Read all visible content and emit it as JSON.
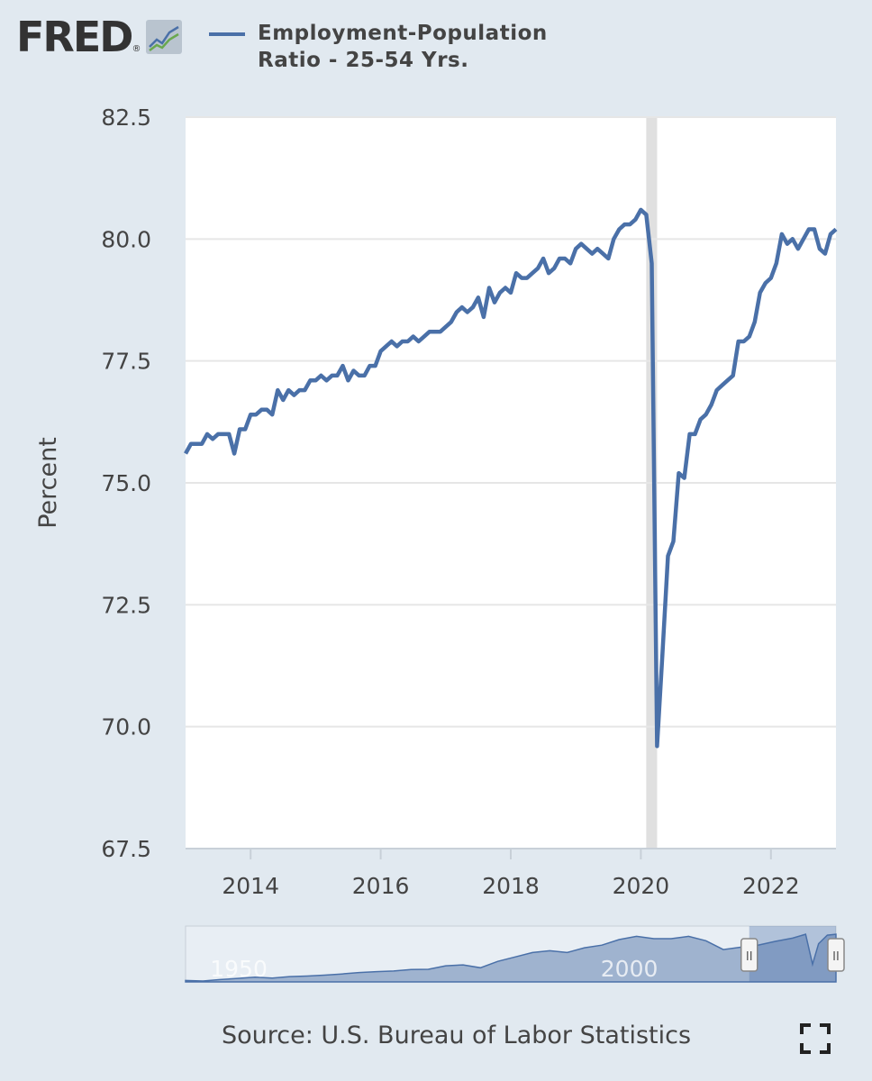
{
  "header": {
    "logo_text": "FRED",
    "logo_reg": "®",
    "legend_label": "Employment-Population Ratio - 25-54 Yrs.",
    "series_color": "#4a70a8"
  },
  "source": "Source: U.S. Bureau of Labor Statistics",
  "icons": {
    "fullscreen": "fullscreen-icon",
    "logo": "chart-trend-icon"
  },
  "navigator": {
    "labels": [
      "1950",
      "2000"
    ],
    "handle_glyph": "II"
  },
  "chart_data": {
    "type": "line",
    "ylabel": "Percent",
    "xlabel": "",
    "ylim": [
      67.5,
      82.5
    ],
    "xlim": [
      2013.0,
      2023.0
    ],
    "yticks": [
      "67.5",
      "70.0",
      "72.5",
      "75.0",
      "77.5",
      "80.0",
      "82.5"
    ],
    "xticks": [
      "2014",
      "2016",
      "2018",
      "2020",
      "2022"
    ],
    "grid": true,
    "legend": "top",
    "recession_shading": [
      2020.083,
      2020.25
    ],
    "series": [
      {
        "name": "Employment-Population Ratio - 25-54 Yrs.",
        "color": "#4a70a8",
        "x": [
          2013.0,
          2013.083,
          2013.167,
          2013.25,
          2013.333,
          2013.417,
          2013.5,
          2013.583,
          2013.667,
          2013.75,
          2013.833,
          2013.917,
          2014.0,
          2014.083,
          2014.167,
          2014.25,
          2014.333,
          2014.417,
          2014.5,
          2014.583,
          2014.667,
          2014.75,
          2014.833,
          2014.917,
          2015.0,
          2015.083,
          2015.167,
          2015.25,
          2015.333,
          2015.417,
          2015.5,
          2015.583,
          2015.667,
          2015.75,
          2015.833,
          2015.917,
          2016.0,
          2016.083,
          2016.167,
          2016.25,
          2016.333,
          2016.417,
          2016.5,
          2016.583,
          2016.667,
          2016.75,
          2016.833,
          2016.917,
          2017.0,
          2017.083,
          2017.167,
          2017.25,
          2017.333,
          2017.417,
          2017.5,
          2017.583,
          2017.667,
          2017.75,
          2017.833,
          2017.917,
          2018.0,
          2018.083,
          2018.167,
          2018.25,
          2018.333,
          2018.417,
          2018.5,
          2018.583,
          2018.667,
          2018.75,
          2018.833,
          2018.917,
          2019.0,
          2019.083,
          2019.167,
          2019.25,
          2019.333,
          2019.417,
          2019.5,
          2019.583,
          2019.667,
          2019.75,
          2019.833,
          2019.917,
          2020.0,
          2020.083,
          2020.167,
          2020.25,
          2020.333,
          2020.417,
          2020.5,
          2020.583,
          2020.667,
          2020.75,
          2020.833,
          2020.917,
          2021.0,
          2021.083,
          2021.167,
          2021.25,
          2021.333,
          2021.417,
          2021.5,
          2021.583,
          2021.667,
          2021.75,
          2021.833,
          2021.917,
          2022.0,
          2022.083,
          2022.167,
          2022.25,
          2022.333,
          2022.417,
          2022.5,
          2022.583,
          2022.667,
          2022.75,
          2022.833,
          2022.917,
          2023.0
        ],
        "values": [
          75.6,
          75.8,
          75.8,
          75.8,
          76.0,
          75.9,
          76.0,
          76.0,
          76.0,
          75.6,
          76.1,
          76.1,
          76.4,
          76.4,
          76.5,
          76.5,
          76.4,
          76.9,
          76.7,
          76.9,
          76.8,
          76.9,
          76.9,
          77.1,
          77.1,
          77.2,
          77.1,
          77.2,
          77.2,
          77.4,
          77.1,
          77.3,
          77.2,
          77.2,
          77.4,
          77.4,
          77.7,
          77.8,
          77.9,
          77.8,
          77.9,
          77.9,
          78.0,
          77.9,
          78.0,
          78.1,
          78.1,
          78.1,
          78.2,
          78.3,
          78.5,
          78.6,
          78.5,
          78.6,
          78.8,
          78.4,
          79.0,
          78.7,
          78.9,
          79.0,
          78.9,
          79.3,
          79.2,
          79.2,
          79.3,
          79.4,
          79.6,
          79.3,
          79.4,
          79.6,
          79.6,
          79.5,
          79.8,
          79.9,
          79.8,
          79.7,
          79.8,
          79.7,
          79.6,
          80.0,
          80.2,
          80.3,
          80.3,
          80.4,
          80.6,
          80.5,
          79.5,
          69.6,
          71.5,
          73.5,
          73.8,
          75.2,
          75.1,
          76.0,
          76.0,
          76.3,
          76.4,
          76.6,
          76.9,
          77.0,
          77.1,
          77.2,
          77.9,
          77.9,
          78.0,
          78.3,
          78.9,
          79.1,
          79.2,
          79.5,
          80.1,
          79.9,
          80.0,
          79.8,
          80.0,
          80.2,
          80.2,
          79.8,
          79.7,
          80.1,
          80.2
        ]
      }
    ],
    "navigator": {
      "xlim": [
        1948,
        2023
      ],
      "ylim": [
        64,
        83
      ],
      "selection": [
        2013.0,
        2023.0
      ],
      "x": [
        1948,
        1950,
        1952,
        1954,
        1956,
        1958,
        1960,
        1962,
        1964,
        1966,
        1968,
        1970,
        1972,
        1974,
        1976,
        1978,
        1980,
        1982,
        1984,
        1986,
        1988,
        1990,
        1992,
        1994,
        1996,
        1998,
        2000,
        2002,
        2004,
        2006,
        2008,
        2010,
        2012,
        2014,
        2016,
        2018,
        2019.5,
        2020.3,
        2021,
        2022,
        2023
      ],
      "values": [
        64.5,
        64.3,
        64.8,
        65.2,
        65.6,
        65.3,
        65.8,
        66.0,
        66.3,
        66.7,
        67.2,
        67.5,
        67.7,
        68.2,
        68.3,
        69.5,
        69.8,
        68.8,
        71.0,
        72.5,
        74.0,
        74.6,
        74.0,
        75.6,
        76.5,
        78.4,
        79.5,
        78.7,
        78.7,
        79.5,
        78.0,
        75.0,
        75.8,
        76.5,
        77.8,
        78.9,
        80.2,
        70.0,
        77.0,
        79.9,
        80.2
      ]
    }
  }
}
